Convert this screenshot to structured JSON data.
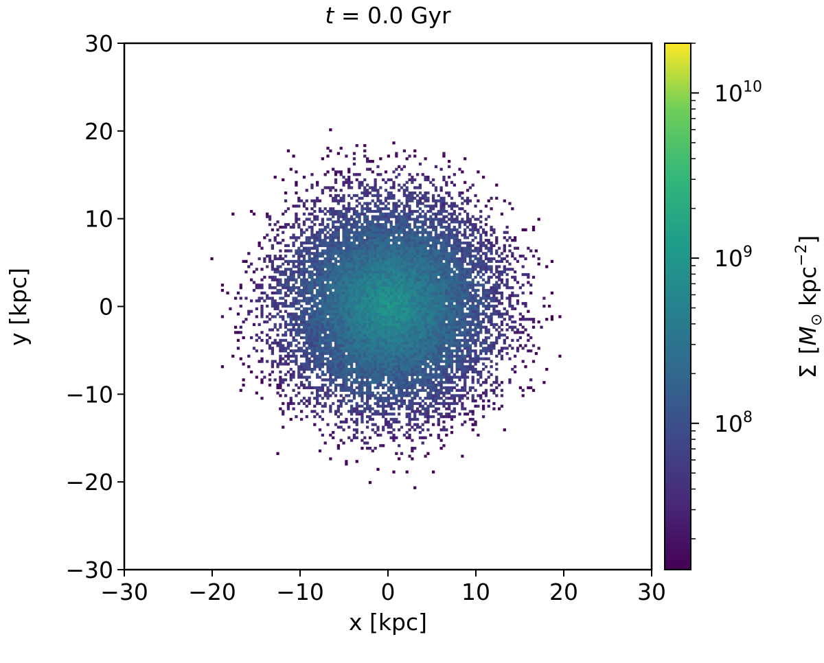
{
  "chart_data": {
    "type": "heatmap",
    "title_prefix": "t",
    "title_value": " = 0.0 Gyr",
    "xlabel": "x [kpc]",
    "ylabel": "y [kpc]",
    "xlim": [
      -30,
      30
    ],
    "ylim": [
      -30,
      30
    ],
    "x_ticks": [
      -30,
      -20,
      -10,
      0,
      10,
      20,
      30
    ],
    "y_ticks": [
      -30,
      -20,
      -10,
      0,
      10,
      20,
      30
    ],
    "x_tick_labels": [
      "−30",
      "−20",
      "−10",
      "0",
      "10",
      "20",
      "30"
    ],
    "y_tick_labels": [
      "−30",
      "−20",
      "−10",
      "0",
      "10",
      "20",
      "30"
    ],
    "grid": false,
    "colormap": "viridis",
    "colorbar": {
      "scale": "log",
      "vmin": 13000000.0,
      "vmax": 20000000000.0,
      "ticks": [
        100000000.0,
        1000000000.0,
        10000000000.0
      ],
      "tick_labels": [
        {
          "base": "10",
          "exp": "8"
        },
        {
          "base": "10",
          "exp": "9"
        },
        {
          "base": "10",
          "exp": "10"
        }
      ],
      "label_symbol": "Σ",
      "label_unit_prefix": "M",
      "label_unit_sub": "⊙",
      "label_unit_mid": " kpc",
      "label_unit_exp": "−2"
    },
    "surface_density_model": {
      "center": [
        0,
        0
      ],
      "peak": 1000000000.0,
      "scale_radius_kpc": 8,
      "outer_radius_kpc": 21
    }
  }
}
